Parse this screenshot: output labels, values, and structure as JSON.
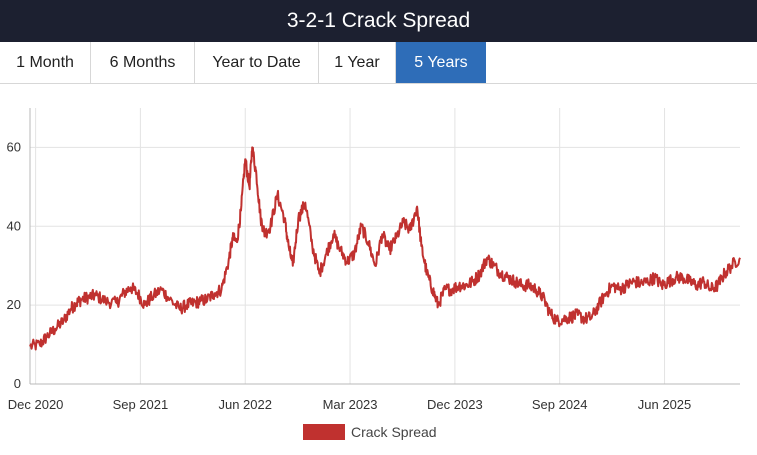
{
  "header": {
    "title": "3-2-1 Crack Spread"
  },
  "tabs": [
    {
      "label": "1 Month",
      "active": false
    },
    {
      "label": "6 Months",
      "active": false
    },
    {
      "label": "Year to Date",
      "active": false
    },
    {
      "label": "1 Year",
      "active": false
    },
    {
      "label": "5 Years",
      "active": true
    }
  ],
  "colors": {
    "series": "#c0312f",
    "active_tab": "#2e6db8",
    "title_bar": "#1c2030",
    "grid": "#e3e3e3"
  },
  "chart_data": {
    "type": "line",
    "title": "",
    "xlabel": "",
    "ylabel": "",
    "ylim": [
      0,
      70
    ],
    "yticks": [
      0,
      20,
      40,
      60
    ],
    "xlim": [
      2020.88,
      2025.96
    ],
    "xticks": [
      {
        "label": "Dec 2020",
        "x": 2020.92
      },
      {
        "label": "Sep 2021",
        "x": 2021.67
      },
      {
        "label": "Jun 2022",
        "x": 2022.42
      },
      {
        "label": "Mar 2023",
        "x": 2023.17
      },
      {
        "label": "Dec 2023",
        "x": 2023.92
      },
      {
        "label": "Sep 2024",
        "x": 2024.67
      },
      {
        "label": "Jun 2025",
        "x": 2025.42
      }
    ],
    "legend": {
      "label": "Crack Spread",
      "position": "bottom-center"
    },
    "series": [
      {
        "name": "Crack Spread",
        "x": [
          2020.88,
          2020.95,
          2021.0,
          2021.06,
          2021.12,
          2021.17,
          2021.21,
          2021.25,
          2021.3,
          2021.35,
          2021.42,
          2021.5,
          2021.55,
          2021.6,
          2021.65,
          2021.7,
          2021.75,
          2021.82,
          2021.88,
          2021.95,
          2022.0,
          2022.05,
          2022.1,
          2022.15,
          2022.2,
          2022.25,
          2022.3,
          2022.33,
          2022.36,
          2022.39,
          2022.42,
          2022.45,
          2022.47,
          2022.5,
          2022.53,
          2022.56,
          2022.6,
          2022.65,
          2022.7,
          2022.73,
          2022.76,
          2022.8,
          2022.85,
          2022.9,
          2022.95,
          2023.0,
          2023.05,
          2023.1,
          2023.15,
          2023.2,
          2023.25,
          2023.3,
          2023.35,
          2023.4,
          2023.45,
          2023.5,
          2023.55,
          2023.6,
          2023.65,
          2023.68,
          2023.72,
          2023.76,
          2023.8,
          2023.85,
          2023.9,
          2023.95,
          2024.0,
          2024.05,
          2024.1,
          2024.15,
          2024.2,
          2024.25,
          2024.3,
          2024.35,
          2024.4,
          2024.45,
          2024.5,
          2024.55,
          2024.6,
          2024.65,
          2024.7,
          2024.75,
          2024.8,
          2024.85,
          2024.9,
          2024.95,
          2025.0,
          2025.05,
          2025.1,
          2025.15,
          2025.2,
          2025.25,
          2025.3,
          2025.35,
          2025.4,
          2025.45,
          2025.5,
          2025.55,
          2025.6,
          2025.65,
          2025.7,
          2025.75,
          2025.8,
          2025.85,
          2025.9,
          2025.96
        ],
        "values": [
          9.5,
          10,
          12,
          14,
          16,
          19,
          20.5,
          21.5,
          22,
          22.5,
          21,
          20.5,
          23,
          24.5,
          23,
          20,
          22,
          24,
          21.5,
          19,
          20,
          20.5,
          21,
          21.5,
          23,
          24,
          31,
          37,
          36,
          44,
          57,
          50,
          60,
          53,
          42,
          38,
          40,
          48,
          42,
          35,
          30,
          42,
          46,
          35,
          28,
          33,
          38,
          34,
          31,
          33,
          40,
          36,
          30,
          38,
          34,
          37,
          41,
          39,
          45,
          35,
          28,
          24,
          20,
          24,
          24,
          25,
          25,
          26,
          28,
          32,
          30,
          28,
          27,
          26,
          25,
          25,
          24,
          22,
          18,
          16,
          16.5,
          17,
          17.5,
          16.5,
          17,
          20,
          23,
          25,
          24,
          25,
          26,
          25.5,
          26,
          27,
          25,
          26,
          27,
          27,
          26,
          25,
          26,
          24,
          25,
          28,
          30,
          32
        ]
      }
    ]
  }
}
